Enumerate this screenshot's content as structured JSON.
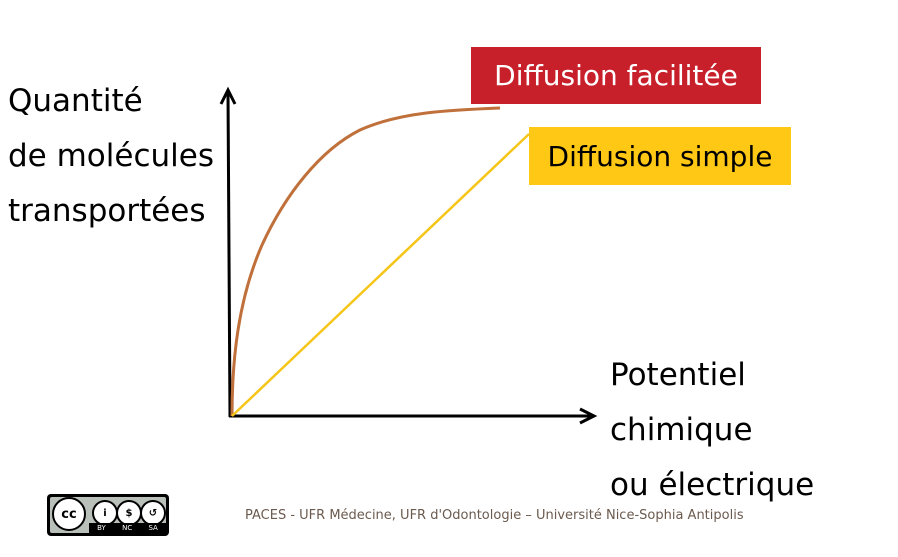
{
  "y_axis_label": [
    "Quantité",
    "de molécules",
    "transportées"
  ],
  "x_axis_label": [
    "Potentiel",
    "chimique",
    "ou électrique"
  ],
  "legend": {
    "facilitated": {
      "label": "Diffusion facilitée",
      "color": "#C8202A",
      "curve_color": "#C0703A"
    },
    "simple": {
      "label": "Diffusion simple",
      "color": "#FFC814",
      "curve_color": "#F5C518"
    }
  },
  "footer": "PACES - UFR Médecine, UFR d'Odontologie – Université Nice-Sophia Antipolis",
  "license": {
    "badge": "CC BY NC SA",
    "terms": [
      "BY",
      "NC",
      "SA"
    ]
  }
}
